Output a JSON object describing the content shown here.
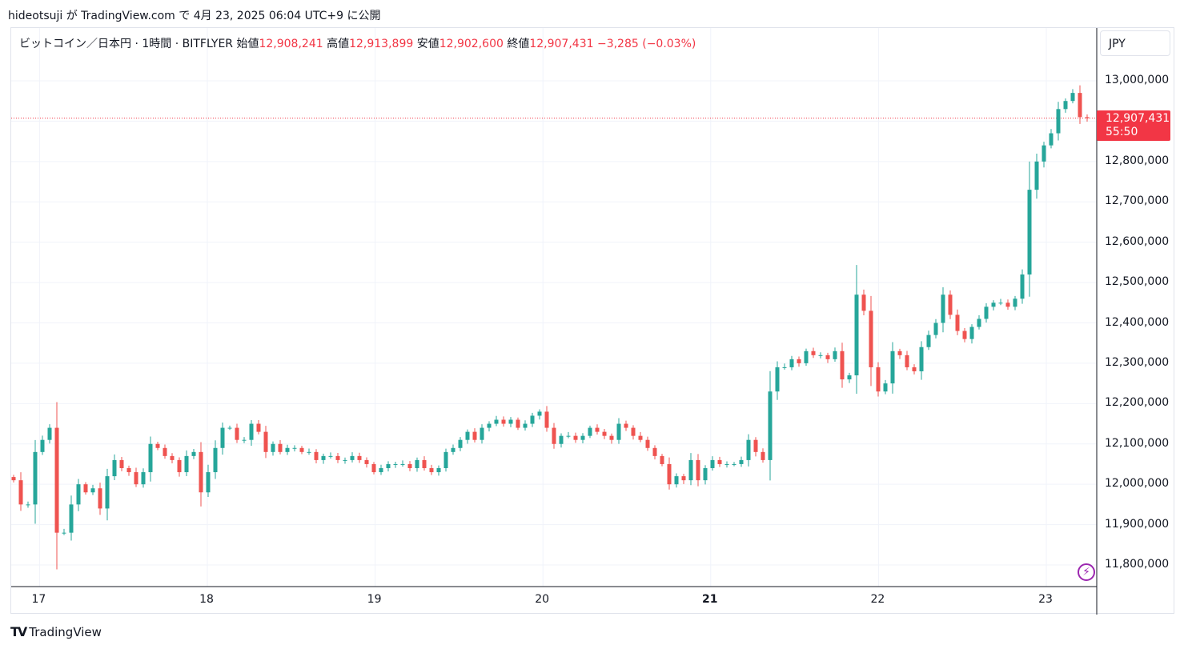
{
  "header": {
    "text": "hideotsuji が TradingView.com で 4月 23, 2025 06:04 UTC+9 に公開"
  },
  "legend": {
    "symbol": "ビットコイン／日本円 · 1時間 · BITFLYER",
    "open_label": "始値",
    "open": "12,908,241",
    "high_label": "高値",
    "high": "12,913,899",
    "low_label": "安値",
    "low": "12,902,600",
    "close_label": "終値",
    "close": "12,907,431",
    "change": "−3,285 (−0.03%)"
  },
  "currency": "JPY",
  "price_tag": {
    "price": "12,907,431",
    "countdown": "55:50"
  },
  "brand": {
    "logo": "TV",
    "name": "TradingView"
  },
  "icons": {
    "flash": "flash-icon",
    "logo": "tradingview-logo-icon"
  },
  "colors": {
    "up": "#26a69a",
    "down": "#ef5350",
    "last_price": "#f23645",
    "grid": "#f0f3fa",
    "flash": "#9c27b0"
  },
  "chart_data": {
    "type": "candlestick",
    "title": "ビットコイン／日本円 · 1時間 · BITFLYER",
    "interval": "1時間",
    "ylim": [
      11750000,
      13050000
    ],
    "y_ticks": [
      "13,000,000",
      "12,900,000",
      "12,800,000",
      "12,700,000",
      "12,600,000",
      "12,500,000",
      "12,400,000",
      "12,300,000",
      "12,200,000",
      "12,100,000",
      "12,000,000",
      "11,900,000",
      "11,800,000"
    ],
    "y_tick_values": [
      13000000,
      12900000,
      12800000,
      12700000,
      12600000,
      12500000,
      12400000,
      12300000,
      12200000,
      12100000,
      12000000,
      11900000,
      11800000
    ],
    "x_ticks": [
      {
        "label": "17",
        "hour": -24,
        "bold": false
      },
      {
        "label": "18",
        "hour": 0,
        "bold": false
      },
      {
        "label": "19",
        "hour": 24,
        "bold": false
      },
      {
        "label": "20",
        "hour": 48,
        "bold": false
      },
      {
        "label": "21",
        "hour": 72,
        "bold": true
      },
      {
        "label": "22",
        "hour": 96,
        "bold": false
      },
      {
        "label": "23",
        "hour": 120,
        "bold": false
      }
    ],
    "last_price": 12907431,
    "grid": true,
    "closes": [
      12010000,
      11950000,
      11950000,
      12080000,
      12110000,
      12140000,
      11880000,
      11880000,
      11950000,
      12000000,
      11980000,
      11990000,
      11940000,
      12020000,
      12060000,
      12040000,
      12030000,
      12000000,
      12030000,
      12100000,
      12090000,
      12070000,
      12060000,
      12030000,
      12070000,
      12080000,
      11980000,
      12030000,
      12090000,
      12140000,
      12140000,
      12110000,
      12110000,
      12150000,
      12130000,
      12080000,
      12100000,
      12080000,
      12090000,
      12090000,
      12080000,
      12080000,
      12060000,
      12070000,
      12070000,
      12060000,
      12060000,
      12070000,
      12060000,
      12050000,
      12030000,
      12040000,
      12050000,
      12050000,
      12050000,
      12040000,
      12060000,
      12040000,
      12030000,
      12040000,
      12080000,
      12090000,
      12110000,
      12130000,
      12110000,
      12140000,
      12150000,
      12160000,
      12150000,
      12160000,
      12140000,
      12150000,
      12170000,
      12180000,
      12140000,
      12100000,
      12120000,
      12120000,
      12110000,
      12120000,
      12140000,
      12130000,
      12120000,
      12110000,
      12150000,
      12140000,
      12120000,
      12110000,
      12090000,
      12070000,
      12050000,
      12000000,
      12020000,
      12010000,
      12060000,
      12010000,
      12040000,
      12060000,
      12050000,
      12050000,
      12050000,
      12060000,
      12110000,
      12080000,
      12060000,
      12230000,
      12290000,
      12290000,
      12310000,
      12300000,
      12330000,
      12320000,
      12320000,
      12310000,
      12330000,
      12260000,
      12270000,
      12470000,
      12430000,
      12290000,
      12230000,
      12250000,
      12330000,
      12320000,
      12290000,
      12280000,
      12340000,
      12370000,
      12400000,
      12470000,
      12420000,
      12380000,
      12360000,
      12390000,
      12410000,
      12440000,
      12450000,
      12450000,
      12440000,
      12460000,
      12520000,
      12730000,
      12800000,
      12840000,
      12870000,
      12930000,
      12950000,
      12970000,
      12910000,
      12907431
    ]
  }
}
